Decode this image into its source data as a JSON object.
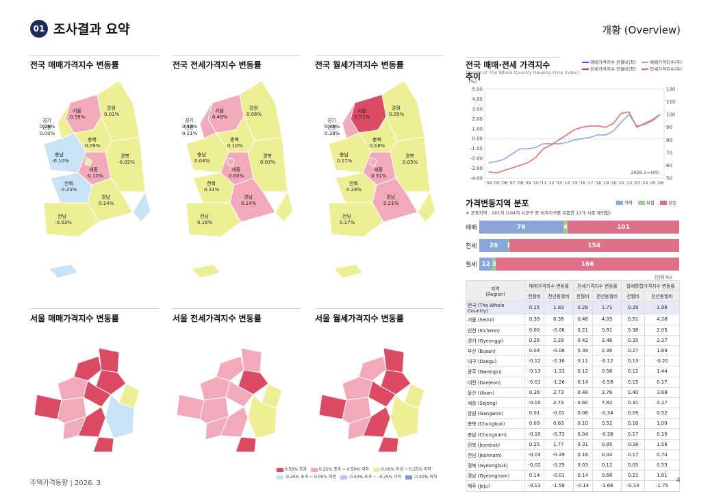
{
  "header": {
    "number": "01",
    "title": "조사결과 요약",
    "overview": "개황 (Overview)"
  },
  "maps_top": [
    {
      "title": "전국 매매가격지수 변동률",
      "labels": [
        {
          "name": "서울",
          "val": "0.39%"
        },
        {
          "name": "강원",
          "val": "0.01%"
        },
        {
          "name": "경기",
          "val": "0.26%"
        },
        {
          "name": "충북",
          "val": "0.09%"
        },
        {
          "name": "충남",
          "val": "-0.10%"
        },
        {
          "name": "경북",
          "val": "-0.02%"
        },
        {
          "name": "전북",
          "val": "0.25%"
        },
        {
          "name": "경남",
          "val": "0.14%"
        },
        {
          "name": "전남",
          "val": "-0.03%"
        },
        {
          "name": "인천",
          "val": "0.00%"
        },
        {
          "name": "세종",
          "val": "-0.10%"
        }
      ]
    },
    {
      "title": "전국 전세가격지수 변동률",
      "labels": [
        {
          "name": "서울",
          "val": "0.48%"
        },
        {
          "name": "강원",
          "val": "0.06%"
        },
        {
          "name": "경기",
          "val": "0.42%"
        },
        {
          "name": "충북",
          "val": "0.10%"
        },
        {
          "name": "충남",
          "val": "0.04%"
        },
        {
          "name": "경북",
          "val": "0.03%"
        },
        {
          "name": "전북",
          "val": "0.31%"
        },
        {
          "name": "경남",
          "val": "0.14%"
        },
        {
          "name": "전남",
          "val": "0.16%"
        },
        {
          "name": "인천",
          "val": "0.21%"
        },
        {
          "name": "세종",
          "val": "0.60%"
        }
      ]
    },
    {
      "title": "전국 월세가격지수 변동률",
      "labels": [
        {
          "name": "서울",
          "val": "0.51%"
        },
        {
          "name": "강원",
          "val": "0.09%"
        },
        {
          "name": "경기",
          "val": "0.35%"
        },
        {
          "name": "충북",
          "val": "0.18%"
        },
        {
          "name": "충남",
          "val": "0.17%"
        },
        {
          "name": "경북",
          "val": "0.05%"
        },
        {
          "name": "전북",
          "val": "0.28%"
        },
        {
          "name": "경남",
          "val": "0.21%"
        },
        {
          "name": "전남",
          "val": "0.17%"
        },
        {
          "name": "인천",
          "val": "0.38%"
        },
        {
          "name": "세종",
          "val": "0.31%"
        }
      ]
    }
  ],
  "maps_bottom": [
    {
      "title": "서울 매매가격지수 변동률"
    },
    {
      "title": "서울 전세가격지수 변동률"
    },
    {
      "title": "서울 월세가격지수 변동률"
    }
  ],
  "map_legend": [
    "0.50% 초과",
    "0.25% 초과 ~ 0.50% 이하",
    "0.00% 이상 ~ 0.25% 이하",
    "-0.25% 초과 ~ 0.00% 미만",
    "-0.50% 초과 ~ -0.25% 이하",
    "-0.50% 이하"
  ],
  "map_colors": {
    "high": "#dc4a64",
    "mid": "#f2aabb",
    "low": "#eeee95",
    "neg1": "#c8e3f5",
    "neg2": "#b8c8e8",
    "neg3": "#7f9ac8"
  },
  "trend": {
    "title": "전국 매매·전세 가격지수 추이",
    "subtitle": "(Trends of The Whole Country Housing Price Index)",
    "unit": "(%)",
    "legend": [
      "매매가격지수 전월비(좌)",
      "전세가격지수 전월비(좌)",
      "매매가격지수(우)",
      "전세가격지수(우)"
    ],
    "note": "2026.1=100"
  },
  "chart_data": {
    "type": "line",
    "x": [
      "'04",
      "'05",
      "'06",
      "'07",
      "'08",
      "'09",
      "'10",
      "'11",
      "'12",
      "'13",
      "'14",
      "'15",
      "'16",
      "'17",
      "'18",
      "'19",
      "'20",
      "'21",
      "'22",
      "'23",
      "'24",
      "'25",
      "'26"
    ],
    "ylim_left": [
      -4,
      5
    ],
    "ylim_right": [
      50,
      120
    ],
    "yticks_left": [
      "5.00",
      "4.00",
      "3.00",
      "2.00",
      "1.00",
      "0.00",
      "-1.00",
      "-2.00",
      "-3.00",
      "-4.00"
    ],
    "yticks_right": [
      "120",
      "110",
      "100",
      "90",
      "80",
      "70",
      "60",
      "50"
    ],
    "series": [
      {
        "name": "매매가격지수(우)",
        "color": "#8fa6ea",
        "values": [
          62,
          63,
          65,
          69,
          73,
          73,
          74,
          77,
          77,
          77,
          78,
          80,
          81,
          82,
          84,
          84,
          87,
          94,
          100,
          91,
          92,
          95,
          100
        ]
      },
      {
        "name": "전세가격지수(우)",
        "color": "#ef6b6b",
        "values": [
          55,
          54,
          56,
          58,
          60,
          62,
          66,
          73,
          76,
          80,
          84,
          88,
          90,
          91,
          91,
          90,
          93,
          101,
          102,
          90,
          93,
          96,
          100
        ]
      }
    ]
  },
  "dist": {
    "title": "가격변동지역 분포",
    "legend": [
      "하락",
      "보합",
      "상승"
    ],
    "note": "※ 공표지역 : 181개 (194개 시군구 중 비자치구를 포함한 13개 시를 제외함)",
    "rows": [
      {
        "label": "매매",
        "down": "76",
        "flat": "4",
        "up": "101",
        "d": 76,
        "f": 4,
        "u": 101
      },
      {
        "label": "전세",
        "down": "26",
        "flat": "1",
        "up": "154",
        "d": 26,
        "f": 1,
        "u": 154
      },
      {
        "label": "월세",
        "down": "12",
        "flat": "3",
        "up": "166",
        "d": 12,
        "f": 3,
        "u": 166
      }
    ],
    "unit": "(단위:%)"
  },
  "table": {
    "head1": [
      "지역\n(Region)",
      "매매가격지수 변동률",
      "전세가격지수 변동률",
      "월세통합가격지수 변동률"
    ],
    "head2": [
      "전월비",
      "전년동월비",
      "전월비",
      "전년동월비",
      "전월비",
      "전년동월비"
    ],
    "rows": [
      [
        "전국 (The Whole Country)",
        "0.15",
        "1.83",
        "0.28",
        "1.71",
        "0.29",
        "1.98"
      ],
      [
        "서울 (Seoul)",
        "0.39",
        "8.38",
        "0.48",
        "4.05",
        "0.51",
        "4.28"
      ],
      [
        "인천 (Incheon)",
        "0.00",
        "-0.06",
        "0.21",
        "0.91",
        "0.38",
        "2.05"
      ],
      [
        "경기 (Gyeonggi)",
        "0.26",
        "2.29",
        "0.42",
        "2.46",
        "0.35",
        "2.37"
      ],
      [
        "부산 (Busan)",
        "0.04",
        "-0.06",
        "0.39",
        "2.36",
        "0.27",
        "1.69"
      ],
      [
        "대구 (Daegu)",
        "-0.12",
        "-2.16",
        "0.11",
        "-0.12",
        "0.13",
        "-0.20"
      ],
      [
        "광주 (Gwangju)",
        "-0.13",
        "-1.33",
        "0.12",
        "0.56",
        "0.12",
        "1.44"
      ],
      [
        "대전 (Daejeon)",
        "-0.01",
        "-1.26",
        "0.14",
        "-0.58",
        "0.15",
        "0.17"
      ],
      [
        "울산 (Ulsan)",
        "0.36",
        "2.73",
        "0.48",
        "3.76",
        "0.40",
        "3.68"
      ],
      [
        "세종 (Sejong)",
        "-0.10",
        "2.73",
        "0.60",
        "7.82",
        "0.31",
        "4.27"
      ],
      [
        "강원 (Gangwon)",
        "0.01",
        "-0.01",
        "0.06",
        "-0.34",
        "0.09",
        "0.52"
      ],
      [
        "충북 (Chungbuk)",
        "0.09",
        "0.63",
        "0.10",
        "0.52",
        "0.18",
        "1.09"
      ],
      [
        "충남 (Chungnam)",
        "-0.10",
        "-0.73",
        "0.04",
        "-0.36",
        "0.17",
        "0.19"
      ],
      [
        "전북 (Jeonbuk)",
        "0.25",
        "1.77",
        "0.31",
        "0.85",
        "0.28",
        "1.58"
      ],
      [
        "전남 (Jeonnam)",
        "-0.03",
        "-0.49",
        "0.16",
        "0.04",
        "0.17",
        "0.74"
      ],
      [
        "경북 (Gyeongbuk)",
        "-0.02",
        "-0.29",
        "0.03",
        "0.12",
        "0.05",
        "0.53"
      ],
      [
        "경남 (Gyeongnam)",
        "0.14",
        "-0.01",
        "0.14",
        "0.68",
        "0.21",
        "1.81"
      ],
      [
        "제주 (Jeju)",
        "-0.13",
        "-1.59",
        "-0.14",
        "-1.66",
        "-0.14",
        "-1.75"
      ]
    ]
  },
  "footer": {
    "left": "주택가격동향 | 2026. 3",
    "page": "4"
  }
}
